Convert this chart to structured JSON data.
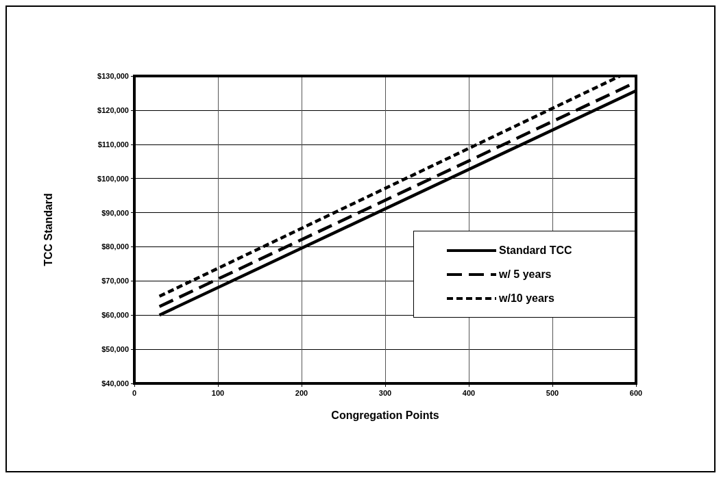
{
  "chart_data": {
    "type": "line",
    "xlabel": "Congregation Points",
    "ylabel": "TCC Standard",
    "xlim": [
      0,
      600
    ],
    "xticks": [
      0,
      100,
      200,
      300,
      400,
      500,
      600
    ],
    "ylim": [
      40000,
      130000
    ],
    "yticks": [
      {
        "value": 40000,
        "label": "$40,000"
      },
      {
        "value": 50000,
        "label": "$50,000"
      },
      {
        "value": 60000,
        "label": "$60,000"
      },
      {
        "value": 70000,
        "label": "$70,000"
      },
      {
        "value": 80000,
        "label": "$80,000"
      },
      {
        "value": 90000,
        "label": "$90,000"
      },
      {
        "value": 100000,
        "label": "$100,000"
      },
      {
        "value": 110000,
        "label": "$110,000"
      },
      {
        "value": 120000,
        "label": "$120,000"
      },
      {
        "value": 130000,
        "label": "$130,000"
      }
    ],
    "grid": true,
    "legend": "right",
    "marker": "none",
    "series": [
      {
        "name": "Standard TCC",
        "color": "#000000",
        "line_style": "solid",
        "x": [
          30,
          600
        ],
        "values": [
          60000,
          125700
        ]
      },
      {
        "name": "w/ 5 years",
        "color": "#000000",
        "line_style": "dashed",
        "x": [
          30,
          600
        ],
        "values": [
          62500,
          128200
        ]
      },
      {
        "name": "w/10 years",
        "color": "#000000",
        "line_style": "dotted",
        "x": [
          30,
          581
        ],
        "values": [
          65500,
          130000
        ]
      }
    ]
  }
}
